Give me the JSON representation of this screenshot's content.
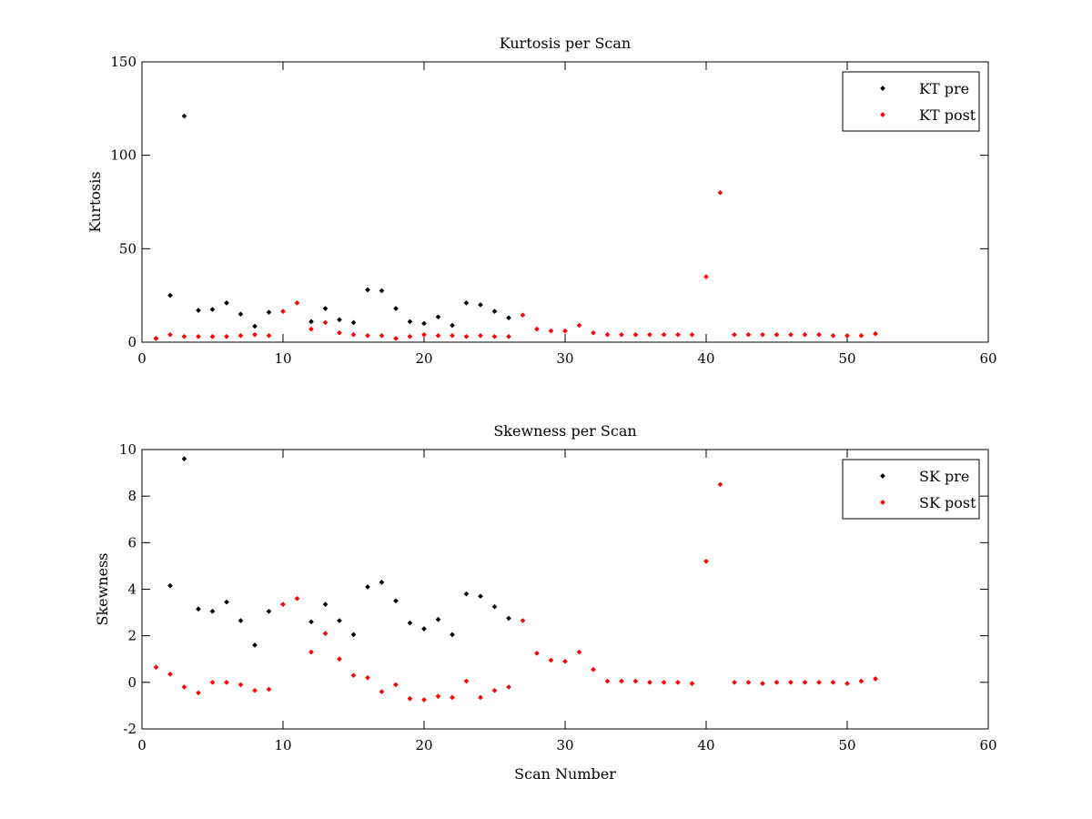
{
  "chart_data": [
    {
      "type": "scatter",
      "title": "Kurtosis per Scan",
      "xlabel": "",
      "ylabel": "Kurtosis",
      "xlim": [
        0,
        60
      ],
      "ylim": [
        0,
        150
      ],
      "xticks": [
        0,
        10,
        20,
        30,
        40,
        50,
        60
      ],
      "yticks": [
        0,
        50,
        100,
        150
      ],
      "grid": false,
      "legend_position": "top-right",
      "series": [
        {
          "name": "KT pre",
          "color": "#000000",
          "x": [
            1,
            2,
            3,
            4,
            5,
            6,
            7,
            8,
            9,
            12,
            13,
            14,
            15,
            16,
            17,
            18,
            19,
            20,
            21,
            22,
            23,
            24,
            25,
            26
          ],
          "y": [
            2,
            25,
            121,
            17,
            17.5,
            21,
            15,
            8.5,
            16,
            11,
            18,
            12,
            10.5,
            28,
            27.5,
            18,
            11,
            10,
            13.5,
            9,
            21,
            20,
            16.5,
            13
          ]
        },
        {
          "name": "KT post",
          "color": "#ff0000",
          "x": [
            1,
            2,
            3,
            4,
            5,
            6,
            7,
            8,
            9,
            10,
            11,
            12,
            13,
            14,
            15,
            16,
            17,
            18,
            19,
            20,
            21,
            22,
            23,
            24,
            25,
            26,
            27,
            28,
            29,
            30,
            31,
            32,
            33,
            34,
            35,
            36,
            37,
            38,
            39,
            40,
            41,
            42,
            43,
            44,
            45,
            46,
            47,
            48,
            49,
            50,
            51,
            52
          ],
          "y": [
            2,
            4,
            3,
            3,
            3,
            3,
            3.5,
            4,
            3.5,
            16.5,
            21,
            7,
            10.5,
            5,
            4,
            3.5,
            3.5,
            2,
            3,
            4,
            3.5,
            3.5,
            3,
            3.5,
            3,
            3,
            14.5,
            7,
            6,
            6,
            9,
            5,
            4,
            4,
            4,
            4,
            4,
            4,
            4,
            35,
            80,
            4,
            4,
            4,
            4,
            4,
            4,
            4,
            3.5,
            3.5,
            3.5,
            4.5
          ]
        }
      ]
    },
    {
      "type": "scatter",
      "title": "Skewness per Scan",
      "xlabel": "Scan Number",
      "ylabel": "Skewness",
      "xlim": [
        0,
        60
      ],
      "ylim": [
        -2,
        10
      ],
      "xticks": [
        0,
        10,
        20,
        30,
        40,
        50,
        60
      ],
      "yticks": [
        -2,
        0,
        2,
        4,
        6,
        8,
        10
      ],
      "grid": false,
      "legend_position": "top-right",
      "series": [
        {
          "name": "SK pre",
          "color": "#000000",
          "x": [
            2,
            3,
            4,
            5,
            6,
            7,
            8,
            9,
            12,
            13,
            14,
            15,
            16,
            17,
            18,
            19,
            20,
            21,
            22,
            23,
            24,
            25,
            26
          ],
          "y": [
            4.15,
            9.6,
            3.15,
            3.05,
            3.45,
            2.65,
            1.6,
            3.05,
            2.6,
            3.35,
            2.65,
            2.05,
            4.1,
            4.3,
            3.5,
            2.55,
            2.3,
            2.7,
            2.05,
            3.8,
            3.7,
            3.25,
            2.75
          ]
        },
        {
          "name": "SK post",
          "color": "#ff0000",
          "x": [
            1,
            2,
            3,
            4,
            5,
            6,
            7,
            8,
            9,
            10,
            11,
            12,
            13,
            14,
            15,
            16,
            17,
            18,
            19,
            20,
            21,
            22,
            23,
            24,
            25,
            26,
            27,
            28,
            29,
            30,
            31,
            32,
            33,
            34,
            35,
            36,
            37,
            38,
            39,
            40,
            41,
            42,
            43,
            44,
            45,
            46,
            47,
            48,
            49,
            50,
            51,
            52
          ],
          "y": [
            0.65,
            0.35,
            -0.2,
            -0.45,
            0,
            0,
            -0.1,
            -0.35,
            -0.3,
            3.35,
            3.6,
            1.3,
            2.1,
            1.0,
            0.3,
            0.2,
            -0.4,
            -0.1,
            -0.7,
            -0.75,
            -0.6,
            -0.65,
            0.05,
            -0.65,
            -0.35,
            -0.2,
            2.65,
            1.25,
            0.95,
            0.9,
            1.3,
            0.55,
            0.05,
            0.05,
            0.05,
            0.0,
            0.0,
            0.0,
            -0.05,
            5.2,
            8.5,
            0.0,
            0.0,
            -0.05,
            0.0,
            0.0,
            0.0,
            0.0,
            0.0,
            -0.05,
            0.05,
            0.15
          ]
        }
      ]
    }
  ]
}
